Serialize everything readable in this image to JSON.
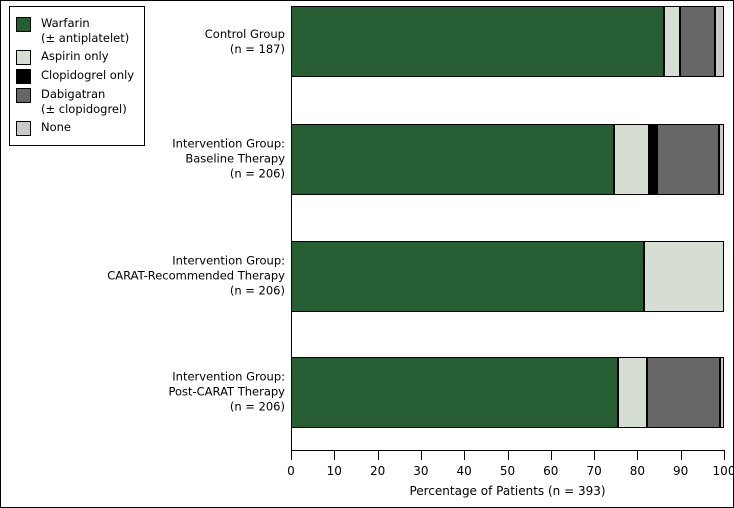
{
  "chart_data": {
    "type": "bar",
    "orientation": "horizontal",
    "stacked": true,
    "grid": false,
    "legend_position": "top-left",
    "xlabel": "Percentage of Patients (n = 393)",
    "xlim": [
      0,
      100
    ],
    "xticks": [
      0,
      10,
      20,
      30,
      40,
      50,
      60,
      70,
      80,
      90,
      100
    ],
    "categories": [
      "Control Group (n = 187)",
      "Intervention Group: Baseline Therapy (n = 206)",
      "Intervention Group: CARAT-Recommended Therapy (n = 206)",
      "Intervention Group: Post-CARAT Therapy (n = 206)"
    ],
    "series": [
      {
        "name": "Warfarin (± antiplatelet)",
        "color": "#275d33",
        "values": [
          86.2,
          74.5,
          81.6,
          75.6
        ]
      },
      {
        "name": "Aspirin only",
        "color": "#d6ddd3",
        "values": [
          3.7,
          8.1,
          18.4,
          6.7
        ]
      },
      {
        "name": "Clopidogrel only",
        "color": "#000000",
        "values": [
          0,
          2.0,
          0,
          0
        ]
      },
      {
        "name": "Dabigatran (± clopidogrel)",
        "color": "#666666",
        "values": [
          8.0,
          14.2,
          0,
          16.7
        ]
      },
      {
        "name": "None",
        "color": "#c9c9c9",
        "values": [
          2.1,
          1.2,
          0,
          1.0
        ]
      }
    ]
  },
  "legend": {
    "items": [
      {
        "line1": "Warfarin",
        "line2": "(± antiplatelet)"
      },
      {
        "line1": "Aspirin only"
      },
      {
        "line1": "Clopidogrel only"
      },
      {
        "line1": "Dabigatran",
        "line2": "(± clopidogrel)"
      },
      {
        "line1": "None"
      }
    ]
  },
  "categories": [
    {
      "line1": "Control Group",
      "line2": "(n = 187)"
    },
    {
      "line1": "Intervention Group:",
      "line2": "Baseline Therapy",
      "line3": "(n = 206)"
    },
    {
      "line1": "Intervention Group:",
      "line2": "CARAT-Recommended Therapy",
      "line3": "(n = 206)"
    },
    {
      "line1": "Intervention Group:",
      "line2": "Post-CARAT Therapy",
      "line3": "(n = 206)"
    }
  ],
  "axis": {
    "label": "Percentage of Patients (n = 393)"
  }
}
